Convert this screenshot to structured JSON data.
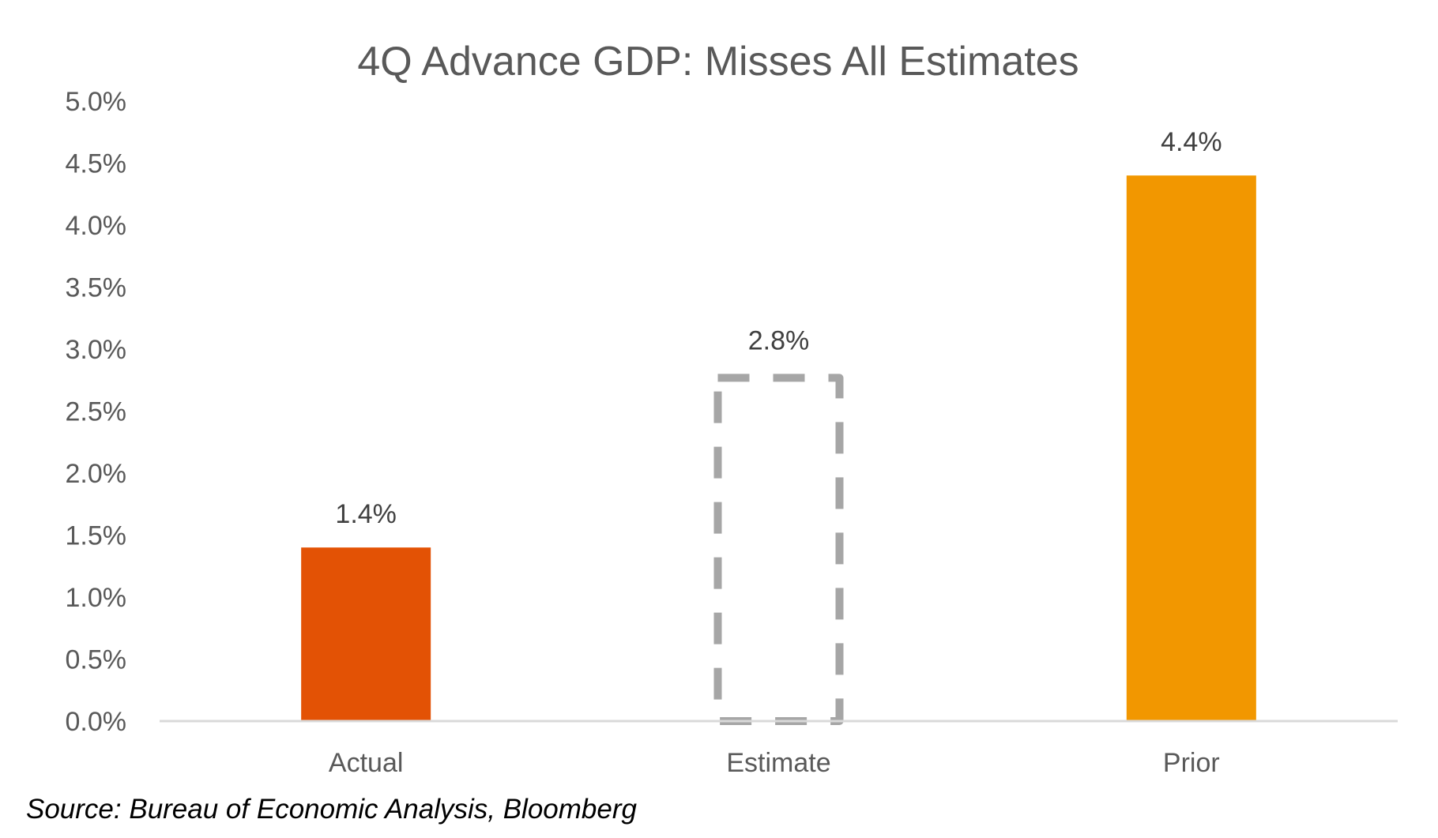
{
  "chart_data": {
    "type": "bar",
    "title": "4Q Advance GDP: Misses All Estimates",
    "xlabel": "",
    "ylabel": "",
    "categories": [
      "Actual",
      "Estimate",
      "Prior"
    ],
    "values": [
      1.4,
      2.8,
      4.4
    ],
    "data_labels": [
      "1.4%",
      "2.8%",
      "4.4%"
    ],
    "bar_styles": [
      "solid",
      "dashed-outline",
      "solid"
    ],
    "ylim": [
      0,
      5.0
    ],
    "yticks": [
      0.0,
      0.5,
      1.0,
      1.5,
      2.0,
      2.5,
      3.0,
      3.5,
      4.0,
      4.5,
      5.0
    ],
    "ytick_labels": [
      "0.0%",
      "0.5%",
      "1.0%",
      "1.5%",
      "2.0%",
      "2.5%",
      "3.0%",
      "3.5%",
      "4.0%",
      "4.5%",
      "5.0%"
    ],
    "grid": false,
    "legend": "none",
    "source_note": "Source: Bureau of Economic Analysis, Bloomberg"
  },
  "colors": {
    "actual": "#E35205",
    "estimate_outline": "#A6A6A6",
    "prior": "#F29700",
    "axis": "#D9D9D9",
    "text": "#595959",
    "data_label": "#404040"
  }
}
